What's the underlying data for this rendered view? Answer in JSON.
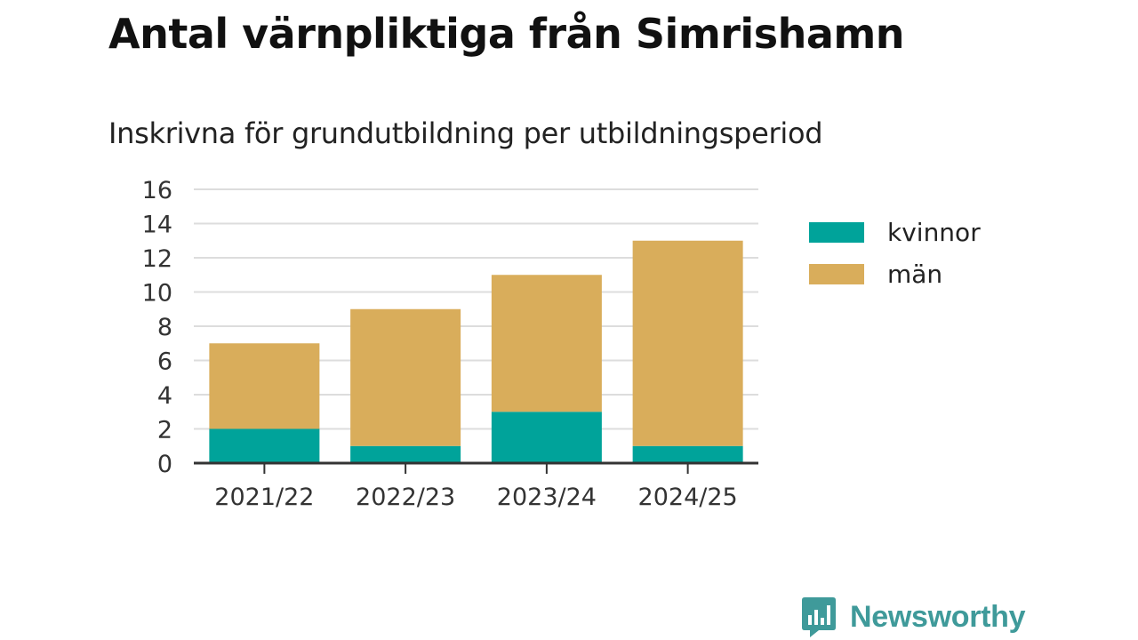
{
  "title": "Antal värnpliktiga från Simrishamn",
  "subtitle": "Inskrivna för grundutbildning per utbildningsperiod",
  "logo": {
    "text": "Newsworthy",
    "icon": "bar-chart-speech-bubble-icon"
  },
  "colors": {
    "kvinnor": "#00a39a",
    "man": "#d9ad5b",
    "grid": "#dddddd",
    "axis": "#333333",
    "logo": "#3f9a9a"
  },
  "chart_data": {
    "type": "bar",
    "stacked": true,
    "categories": [
      "2021/22",
      "2022/23",
      "2023/24",
      "2024/25"
    ],
    "series": [
      {
        "name": "kvinnor",
        "values": [
          2,
          1,
          3,
          1
        ]
      },
      {
        "name": "män",
        "values": [
          5,
          8,
          8,
          12
        ]
      }
    ],
    "ylim": [
      0,
      16
    ],
    "yticks": [
      0,
      2,
      4,
      6,
      8,
      10,
      12,
      14,
      16
    ],
    "grid": true,
    "legend_position": "right"
  }
}
